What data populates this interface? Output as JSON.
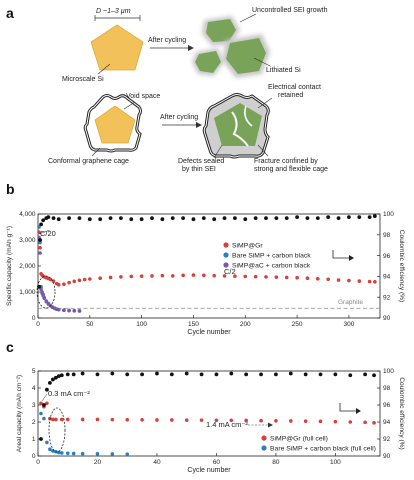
{
  "panel_a": {
    "letter": "a",
    "diameter_label": "D ~1–3 µm",
    "microscale_label": "Microscale Si",
    "after_cycling_1": "After cycling",
    "uncontrolled_sei": "Uncontrolled SEI growth",
    "lithiated_si": "Lithiated Si",
    "void_space": "Void space",
    "electrical_contact_line1": "Electrical contact",
    "electrical_contact_line2": "retained",
    "after_cycling_2": "After cycling",
    "conformal_cage": "Conformal graphene cage",
    "defects_line1": "Defects sealed",
    "defects_line2": "by thin SEI",
    "fracture_line1": "Fracture confined by",
    "fracture_line2": "strong and flexible cage"
  },
  "panel_b": {
    "letter": "b",
    "annotation_c20": "C/20",
    "annotation_c2": "C/2",
    "graphite_label": "Graphite",
    "legend": [
      "SiMP@Gr",
      "Bare SiMP + carbon black",
      "SiMP@aC + carbon black"
    ]
  },
  "panel_c": {
    "letter": "c",
    "annotation_low": "0.3 mA cm⁻²",
    "annotation_high": "1.4 mA cm⁻²",
    "legend": [
      "SiMP@Gr (full cell)",
      "Bare SiMP + carbon black (full cell)"
    ]
  },
  "chart_data": [
    {
      "type": "scatter",
      "xlabel": "Cycle number",
      "ylabel": "Specific capacity (mAh g⁻¹)",
      "y2label": "Coulombic efficiency (%)",
      "xlim": [
        0,
        330
      ],
      "ylim": [
        0,
        4000
      ],
      "y2lim": [
        90,
        100
      ],
      "xticks": [
        0,
        50,
        100,
        150,
        200,
        250,
        300
      ],
      "yticks": [
        0,
        1000,
        2000,
        3000,
        4000
      ],
      "yticklabels": [
        "0",
        "1,000",
        "2,000",
        "3,000",
        "4,000"
      ],
      "y2ticks": [
        90,
        92,
        94,
        96,
        98,
        100
      ],
      "graphite_reference": 372,
      "legend_position": "right",
      "series": [
        {
          "name": "SiMP@Gr",
          "color": "#d9403a",
          "x": [
            1,
            2,
            3,
            4,
            5,
            6,
            8,
            10,
            12,
            15,
            18,
            20,
            25,
            30,
            35,
            40,
            45,
            50,
            60,
            70,
            80,
            90,
            100,
            110,
            120,
            130,
            140,
            150,
            160,
            170,
            180,
            190,
            200,
            210,
            220,
            230,
            240,
            250,
            260,
            270,
            280,
            290,
            300,
            310,
            320,
            325
          ],
          "y": [
            3300,
            2700,
            1700,
            1650,
            1600,
            1580,
            1550,
            1520,
            1480,
            1420,
            1320,
            1280,
            1300,
            1360,
            1410,
            1450,
            1480,
            1500,
            1530,
            1560,
            1580,
            1600,
            1610,
            1620,
            1630,
            1620,
            1640,
            1650,
            1640,
            1630,
            1620,
            1610,
            1600,
            1590,
            1580,
            1570,
            1560,
            1550,
            1530,
            1510,
            1490,
            1460,
            1440,
            1420,
            1400,
            1390
          ]
        },
        {
          "name": "Bare SiMP + carbon black",
          "color": "#2e7fc1",
          "x": [
            1,
            2,
            3,
            4,
            5,
            6,
            8,
            10,
            12,
            14,
            16,
            18,
            20,
            25,
            30,
            35,
            40
          ],
          "y": [
            3500,
            2900,
            1200,
            1000,
            900,
            780,
            650,
            560,
            480,
            420,
            380,
            340,
            320,
            300,
            285,
            275,
            270
          ]
        },
        {
          "name": "SiMP@aC + carbon black",
          "color": "#7a5aa8",
          "x": [
            1,
            2,
            3,
            4,
            5,
            6,
            8,
            10,
            12,
            14,
            16,
            18,
            20,
            25,
            30,
            35,
            40
          ],
          "y": [
            3100,
            2500,
            1100,
            950,
            860,
            760,
            630,
            540,
            470,
            410,
            370,
            340,
            320,
            300,
            290,
            280,
            275
          ]
        },
        {
          "name": "Coulombic efficiency",
          "axis": "right",
          "color": "#111111",
          "x": [
            1,
            2,
            3,
            5,
            8,
            10,
            15,
            20,
            30,
            40,
            50,
            60,
            70,
            80,
            90,
            100,
            110,
            120,
            130,
            140,
            150,
            160,
            170,
            180,
            190,
            200,
            210,
            220,
            230,
            240,
            250,
            260,
            270,
            280,
            290,
            300,
            310,
            320,
            325
          ],
          "y": [
            93.0,
            97.5,
            99.0,
            99.4,
            99.6,
            99.7,
            99.6,
            99.5,
            99.6,
            99.6,
            99.5,
            99.5,
            99.6,
            99.6,
            99.5,
            99.5,
            99.6,
            99.5,
            99.6,
            99.6,
            99.5,
            99.6,
            99.5,
            99.6,
            99.6,
            99.5,
            99.6,
            99.6,
            99.6,
            99.6,
            99.7,
            99.6,
            99.6,
            99.7,
            99.6,
            99.7,
            99.7,
            99.7,
            99.8
          ]
        }
      ]
    },
    {
      "type": "scatter",
      "xlabel": "Cycle number",
      "ylabel": "Areal capacity (mAh cm⁻²)",
      "y2label": "Coulombic efficiency (%)",
      "xlim": [
        0,
        115
      ],
      "ylim": [
        0,
        5
      ],
      "y2lim": [
        90,
        100
      ],
      "xticks": [
        0,
        20,
        40,
        60,
        80,
        100
      ],
      "yticks": [
        0,
        1,
        2,
        3,
        4,
        5
      ],
      "y2ticks": [
        90,
        92,
        94,
        96,
        98,
        100
      ],
      "legend_position": "bottom-right",
      "series": [
        {
          "name": "SiMP@Gr (full cell)",
          "color": "#d9403a",
          "x": [
            1,
            2,
            3,
            4,
            5,
            6,
            8,
            10,
            15,
            20,
            25,
            30,
            35,
            40,
            45,
            50,
            55,
            60,
            65,
            70,
            75,
            80,
            85,
            90,
            95,
            100,
            105,
            110,
            113
          ],
          "y": [
            3.1,
            2.9,
            3.1,
            2.2,
            2.15,
            2.15,
            2.15,
            2.15,
            2.15,
            2.15,
            2.14,
            2.13,
            2.13,
            2.12,
            2.12,
            2.11,
            2.11,
            2.1,
            2.1,
            2.09,
            2.08,
            2.07,
            2.06,
            2.05,
            2.04,
            2.02,
            2.0,
            1.98,
            1.95
          ]
        },
        {
          "name": "Bare SiMP + carbon black (full cell)",
          "color": "#2e7fc1",
          "x": [
            1,
            2,
            3,
            4,
            5,
            6,
            7,
            8,
            10,
            12,
            15,
            20,
            25,
            30
          ],
          "y": [
            2.5,
            2.2,
            0.8,
            0.4,
            0.3,
            0.25,
            0.2,
            0.18,
            0.16,
            0.15,
            0.14,
            0.13,
            0.12,
            0.11
          ]
        },
        {
          "name": "Coulombic efficiency",
          "axis": "right",
          "color": "#111111",
          "x": [
            1,
            2,
            3,
            4,
            5,
            6,
            7,
            8,
            10,
            12,
            15,
            20,
            25,
            30,
            35,
            40,
            45,
            50,
            55,
            60,
            65,
            70,
            75,
            80,
            85,
            90,
            95,
            100,
            105,
            110,
            113
          ],
          "y": [
            92.0,
            96.0,
            97.8,
            98.6,
            99.0,
            99.2,
            99.4,
            99.5,
            99.6,
            99.6,
            99.7,
            99.6,
            99.7,
            99.6,
            99.6,
            99.7,
            99.6,
            99.7,
            99.6,
            99.6,
            99.7,
            99.6,
            99.6,
            99.6,
            99.7,
            99.6,
            99.6,
            99.6,
            99.5,
            99.6,
            99.5
          ]
        }
      ]
    }
  ]
}
